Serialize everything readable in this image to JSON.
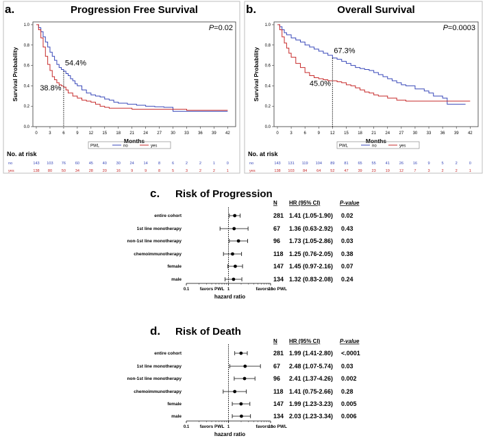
{
  "chart_data": [
    {
      "id": "a",
      "type": "line",
      "panel_letter": "a.",
      "title": "Progression Free Survival",
      "pvalue_prefix": "P",
      "pvalue_suffix": "=0.02",
      "xlabel": "Months",
      "ylabel": "Survival Probability",
      "xlim": [
        0,
        43
      ],
      "ylim": [
        0,
        1
      ],
      "xticks": [
        "0",
        "3",
        "6",
        "9",
        "12",
        "15",
        "18",
        "21",
        "24",
        "27",
        "30",
        "33",
        "36",
        "39",
        "42"
      ],
      "yticks": [
        "0.0",
        "0.2",
        "0.4",
        "0.6",
        "0.8",
        "1.0"
      ],
      "reference_x": 6,
      "annotations": [
        {
          "text": "54.4%",
          "x": 6.3,
          "y": 0.6
        },
        {
          "text": "38.8%",
          "x": 0.8,
          "y": 0.355
        }
      ],
      "legend_title": "PWL",
      "series": [
        {
          "name": "no",
          "color": "#3646b8",
          "x": [
            0,
            0.5,
            1,
            1.5,
            2,
            2.5,
            3,
            3.5,
            4,
            4.5,
            5,
            5.5,
            6,
            6.5,
            7,
            7.5,
            8,
            8.5,
            9,
            10,
            11,
            12,
            13,
            14,
            15,
            16,
            17,
            18,
            20,
            22,
            24,
            26,
            28,
            30,
            33,
            36,
            39,
            42
          ],
          "y": [
            1,
            0.97,
            0.93,
            0.88,
            0.83,
            0.78,
            0.73,
            0.69,
            0.65,
            0.61,
            0.58,
            0.56,
            0.544,
            0.52,
            0.5,
            0.47,
            0.45,
            0.42,
            0.4,
            0.36,
            0.33,
            0.31,
            0.3,
            0.29,
            0.27,
            0.26,
            0.24,
            0.23,
            0.22,
            0.21,
            0.2,
            0.195,
            0.19,
            0.15,
            0.15,
            0.15,
            0.15,
            0.15
          ]
        },
        {
          "name": "yes",
          "color": "#c62828",
          "x": [
            0,
            0.5,
            1,
            1.5,
            2,
            2.5,
            3,
            3.5,
            4,
            4.5,
            5,
            5.5,
            6,
            6.5,
            7,
            8,
            9,
            10,
            11,
            12,
            13,
            14,
            15,
            16,
            18,
            21,
            24,
            27,
            30,
            33,
            36,
            39,
            42
          ],
          "y": [
            1,
            0.95,
            0.87,
            0.78,
            0.69,
            0.61,
            0.55,
            0.49,
            0.46,
            0.43,
            0.41,
            0.4,
            0.388,
            0.36,
            0.33,
            0.3,
            0.28,
            0.26,
            0.25,
            0.24,
            0.22,
            0.2,
            0.19,
            0.18,
            0.18,
            0.17,
            0.17,
            0.17,
            0.17,
            0.16,
            0.16,
            0.16,
            0.16
          ]
        }
      ],
      "risk_table": {
        "header": "No. at risk",
        "rows": [
          {
            "label": "no",
            "color": "#3646b8",
            "values": [
              "143",
              "103",
              "76",
              "60",
              "45",
              "40",
              "30",
              "24",
              "14",
              "8",
              "6",
              "2",
              "2",
              "1",
              "0"
            ]
          },
          {
            "label": "yes",
            "color": "#c62828",
            "values": [
              "138",
              "80",
              "50",
              "34",
              "28",
              "20",
              "16",
              "9",
              "9",
              "8",
              "5",
              "3",
              "2",
              "2",
              "1"
            ]
          }
        ]
      }
    },
    {
      "id": "b",
      "type": "line",
      "panel_letter": "b.",
      "title": "Overall Survival",
      "pvalue_prefix": "P",
      "pvalue_suffix": "=0.0003",
      "xlabel": "Months",
      "ylabel": "Survival Probability",
      "xlim": [
        0,
        43
      ],
      "ylim": [
        0,
        1
      ],
      "xticks": [
        "0",
        "3",
        "6",
        "9",
        "12",
        "15",
        "18",
        "21",
        "24",
        "27",
        "30",
        "33",
        "36",
        "39",
        "42"
      ],
      "yticks": [
        "0.0",
        "0.2",
        "0.4",
        "0.6",
        "0.8",
        "1.0"
      ],
      "reference_x": 12,
      "annotations": [
        {
          "text": "67.3%",
          "x": 12.3,
          "y": 0.72
        },
        {
          "text": "45.0%",
          "x": 7.0,
          "y": 0.4
        }
      ],
      "legend_title": "PWL",
      "series": [
        {
          "name": "no",
          "color": "#3646b8",
          "x": [
            0,
            0.5,
            1,
            1.5,
            2,
            3,
            4,
            5,
            6,
            7,
            8,
            9,
            10,
            11,
            12,
            13,
            14,
            15,
            16,
            17,
            18,
            19,
            20,
            21,
            22,
            23,
            24,
            25,
            26,
            27,
            28,
            30,
            32,
            33,
            34,
            36,
            37,
            39,
            41
          ],
          "y": [
            1,
            0.98,
            0.95,
            0.92,
            0.9,
            0.87,
            0.85,
            0.83,
            0.8,
            0.78,
            0.76,
            0.74,
            0.72,
            0.7,
            0.673,
            0.66,
            0.64,
            0.62,
            0.6,
            0.58,
            0.57,
            0.56,
            0.55,
            0.53,
            0.51,
            0.49,
            0.47,
            0.45,
            0.43,
            0.41,
            0.4,
            0.37,
            0.35,
            0.33,
            0.3,
            0.28,
            0.22,
            0.22,
            0.22
          ]
        },
        {
          "name": "yes",
          "color": "#c62828",
          "x": [
            0,
            0.5,
            1,
            1.5,
            2,
            2.5,
            3,
            4,
            5,
            6,
            7,
            8,
            9,
            10,
            11,
            12,
            13,
            14,
            15,
            16,
            17,
            18,
            19,
            20,
            21,
            22,
            24,
            26,
            28,
            30,
            33,
            36,
            39,
            42
          ],
          "y": [
            1,
            0.95,
            0.88,
            0.82,
            0.77,
            0.72,
            0.68,
            0.62,
            0.58,
            0.53,
            0.5,
            0.48,
            0.47,
            0.46,
            0.45,
            0.45,
            0.44,
            0.43,
            0.41,
            0.4,
            0.38,
            0.36,
            0.34,
            0.33,
            0.31,
            0.3,
            0.28,
            0.26,
            0.25,
            0.25,
            0.25,
            0.25,
            0.25,
            0.25
          ]
        }
      ],
      "risk_table": {
        "header": "No. at risk",
        "rows": [
          {
            "label": "no",
            "color": "#3646b8",
            "values": [
              "143",
              "131",
              "119",
              "104",
              "89",
              "81",
              "65",
              "55",
              "41",
              "26",
              "16",
              "9",
              "5",
              "2",
              "0"
            ]
          },
          {
            "label": "yes",
            "color": "#c62828",
            "values": [
              "138",
              "103",
              "84",
              "64",
              "52",
              "47",
              "39",
              "23",
              "19",
              "12",
              "7",
              "3",
              "2",
              "2",
              "1"
            ]
          }
        ]
      }
    },
    {
      "id": "c",
      "type": "forest",
      "panel_letter": "c.",
      "title": "Risk of Progression",
      "col_headers": {
        "n": "N",
        "hr": "HR (95% CI)",
        "p": "P-value"
      },
      "xscale": "log",
      "xlim": [
        0.1,
        10
      ],
      "xticks": [
        "0.1",
        "1",
        "10"
      ],
      "xlabel": "hazard ratio",
      "favors_left": "favors PWL",
      "favors_right": "favors no PWL",
      "rows": [
        {
          "label": "entire cohort",
          "n": "281",
          "hr_text": "1.41 (1.05-1.90)",
          "p": "0.02",
          "hr": 1.41,
          "lo": 1.05,
          "hi": 1.9
        },
        {
          "label": "1st line monotherapy",
          "n": "67",
          "hr_text": "1.36 (0.63-2.92)",
          "p": "0.43",
          "hr": 1.36,
          "lo": 0.63,
          "hi": 2.92
        },
        {
          "label": "non-1st line monotherapy",
          "n": "96",
          "hr_text": "1.73 (1.05-2.86)",
          "p": "0.03",
          "hr": 1.73,
          "lo": 1.05,
          "hi": 2.86
        },
        {
          "label": "chemoimmunotherapy",
          "n": "118",
          "hr_text": "1.25 (0.76-2.05)",
          "p": "0.38",
          "hr": 1.25,
          "lo": 0.76,
          "hi": 2.05
        },
        {
          "label": "female",
          "n": "147",
          "hr_text": "1.45 (0.97-2.16)",
          "p": "0.07",
          "hr": 1.45,
          "lo": 0.97,
          "hi": 2.16
        },
        {
          "label": "male",
          "n": "134",
          "hr_text": "1.32 (0.83-2.08)",
          "p": "0.24",
          "hr": 1.32,
          "lo": 0.83,
          "hi": 2.08
        }
      ]
    },
    {
      "id": "d",
      "type": "forest",
      "panel_letter": "d.",
      "title": "Risk of Death",
      "col_headers": {
        "n": "N",
        "hr": "HR (95% CI)",
        "p": "P-value"
      },
      "xscale": "log",
      "xlim": [
        0.1,
        10
      ],
      "xticks": [
        "0.1",
        "1",
        "10"
      ],
      "xlabel": "hazard ratio",
      "favors_left": "favors PWL",
      "favors_right": "favors no PWL",
      "rows": [
        {
          "label": "entire cohort",
          "n": "281",
          "hr_text": "1.99 (1.41-2.80)",
          "p": "<.0001",
          "hr": 1.99,
          "lo": 1.41,
          "hi": 2.8
        },
        {
          "label": "1st line monotherapy",
          "n": "67",
          "hr_text": "2.48 (1.07-5.74)",
          "p": "0.03",
          "hr": 2.48,
          "lo": 1.07,
          "hi": 5.74
        },
        {
          "label": "non-1st line monotherapy",
          "n": "96",
          "hr_text": "2.41 (1.37-4.26)",
          "p": "0.002",
          "hr": 2.41,
          "lo": 1.37,
          "hi": 4.26
        },
        {
          "label": "chemoimmunotherapy",
          "n": "118",
          "hr_text": "1.41 (0.75-2.66)",
          "p": "0.28",
          "hr": 1.41,
          "lo": 0.75,
          "hi": 2.66
        },
        {
          "label": "female",
          "n": "147",
          "hr_text": "1.99 (1.23-3.23)",
          "p": "0.005",
          "hr": 1.99,
          "lo": 1.23,
          "hi": 3.23
        },
        {
          "label": "male",
          "n": "134",
          "hr_text": "2.03 (1.23-3.34)",
          "p": "0.006",
          "hr": 2.03,
          "lo": 1.23,
          "hi": 3.34
        }
      ]
    }
  ]
}
